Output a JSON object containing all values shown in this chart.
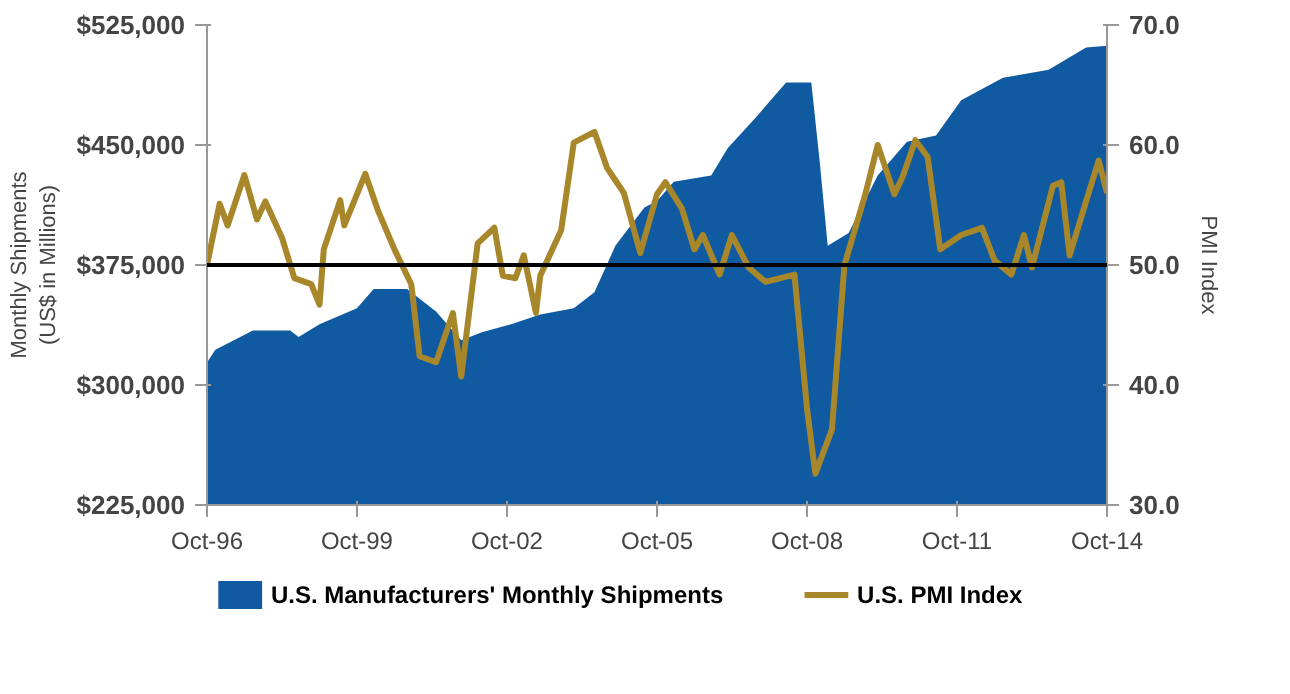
{
  "chart_data": {
    "type": "area",
    "xlabel": null,
    "ylabel": "Monthly Shipments\n(US$ in Millions)",
    "y2label": "PMI Index",
    "series": [
      {
        "name": "U.S. Manufacturers' Monthly Shipments",
        "color": "#0f5aa0",
        "x": [
          "1996-10",
          "1996-12",
          "1997-09",
          "1998-06",
          "1998-08",
          "1999-01",
          "1999-10",
          "2000-02",
          "2000-10",
          "2001-05",
          "2001-11",
          "2002-04",
          "2002-11",
          "2003-06",
          "2004-02",
          "2004-07",
          "2004-12",
          "2005-07",
          "2005-10",
          "2006-02",
          "2006-11",
          "2007-03",
          "2007-10",
          "2008-05",
          "2008-11",
          "2009-01",
          "2009-03",
          "2009-08",
          "2010-03",
          "2010-10",
          "2011-05",
          "2011-11",
          "2012-09",
          "2013-08",
          "2014-05",
          "2014-10"
        ],
        "values": [
          314000,
          322000,
          334000,
          334000,
          330000,
          338000,
          348000,
          360000,
          360000,
          346000,
          328000,
          333000,
          338000,
          344000,
          348000,
          358000,
          387000,
          411000,
          415000,
          427000,
          431000,
          448000,
          468000,
          489000,
          489000,
          440000,
          387000,
          395000,
          431000,
          452000,
          456000,
          478000,
          492000,
          497000,
          511000,
          512000
        ]
      },
      {
        "name": "U.S. PMI Index",
        "color": "#a8862a",
        "type": "line",
        "axis": "y2",
        "x": [
          "1996-10",
          "1997-01",
          "1997-03",
          "1997-07",
          "1997-10",
          "1997-12",
          "1998-04",
          "1998-07",
          "1998-11",
          "1999-01",
          "1999-02",
          "1999-06",
          "1999-07",
          "1999-12",
          "2000-03",
          "2000-07",
          "2000-11",
          "2001-01",
          "2001-05",
          "2001-09",
          "2001-11",
          "2002-03",
          "2002-07",
          "2002-09",
          "2002-12",
          "2003-02",
          "2003-05",
          "2003-06",
          "2003-11",
          "2004-02",
          "2004-07",
          "2004-10",
          "2005-02",
          "2005-06",
          "2005-10",
          "2005-12",
          "2006-04",
          "2006-07",
          "2006-09",
          "2007-01",
          "2007-04",
          "2007-08",
          "2007-12",
          "2008-07",
          "2008-10",
          "2008-12",
          "2009-04",
          "2009-07",
          "2009-12",
          "2010-03",
          "2010-07",
          "2010-09",
          "2010-12",
          "2011-03",
          "2011-06",
          "2011-11",
          "2012-04",
          "2012-07",
          "2012-11",
          "2013-02",
          "2013-04",
          "2013-09",
          "2013-11",
          "2014-01",
          "2014-05",
          "2014-08",
          "2014-10"
        ],
        "values": [
          50.0,
          55.1,
          53.3,
          57.5,
          53.8,
          55.3,
          52.3,
          48.9,
          48.4,
          46.7,
          51.3,
          55.4,
          53.3,
          57.6,
          54.6,
          51.3,
          48.4,
          42.4,
          41.9,
          46.0,
          40.7,
          51.8,
          53.1,
          49.1,
          48.9,
          50.8,
          46.0,
          49.1,
          52.9,
          60.2,
          61.1,
          58.1,
          56.0,
          51.0,
          55.9,
          56.9,
          54.7,
          51.3,
          52.5,
          49.2,
          52.5,
          49.8,
          48.6,
          49.2,
          38.0,
          32.6,
          36.3,
          50.0,
          55.9,
          60.0,
          55.9,
          57.4,
          60.4,
          59.0,
          51.3,
          52.5,
          53.1,
          50.4,
          49.2,
          52.5,
          49.8,
          56.6,
          56.9,
          50.8,
          55.3,
          58.7,
          56.0
        ]
      }
    ],
    "xlim": [
      "1996-10",
      "2014-10"
    ],
    "xticks": [
      {
        "value": "1996-10",
        "label": "Oct-96"
      },
      {
        "value": "1999-10",
        "label": "Oct-99"
      },
      {
        "value": "2002-10",
        "label": "Oct-02"
      },
      {
        "value": "2005-10",
        "label": "Oct-05"
      },
      {
        "value": "2008-10",
        "label": "Oct-08"
      },
      {
        "value": "2011-10",
        "label": "Oct-11"
      },
      {
        "value": "2014-10",
        "label": "Oct-14"
      }
    ],
    "ylim": [
      225000,
      525000
    ],
    "yticks": [
      {
        "value": 225000,
        "label": "$225,000"
      },
      {
        "value": 300000,
        "label": "$300,000"
      },
      {
        "value": 375000,
        "label": "$375,000"
      },
      {
        "value": 450000,
        "label": "$450,000"
      },
      {
        "value": 525000,
        "label": "$525,000"
      }
    ],
    "y2lim": [
      30,
      70
    ],
    "y2ticks": [
      {
        "value": 30,
        "label": "30.0"
      },
      {
        "value": 40,
        "label": "40.0"
      },
      {
        "value": 50,
        "label": "50.0"
      },
      {
        "value": 60,
        "label": "60.0"
      },
      {
        "value": 70,
        "label": "70.0"
      }
    ],
    "ref_lines": [
      {
        "axis": "y2",
        "value": 50,
        "color": "#000000"
      }
    ],
    "grid": false,
    "legend": "bottom",
    "line_style": "solid"
  }
}
